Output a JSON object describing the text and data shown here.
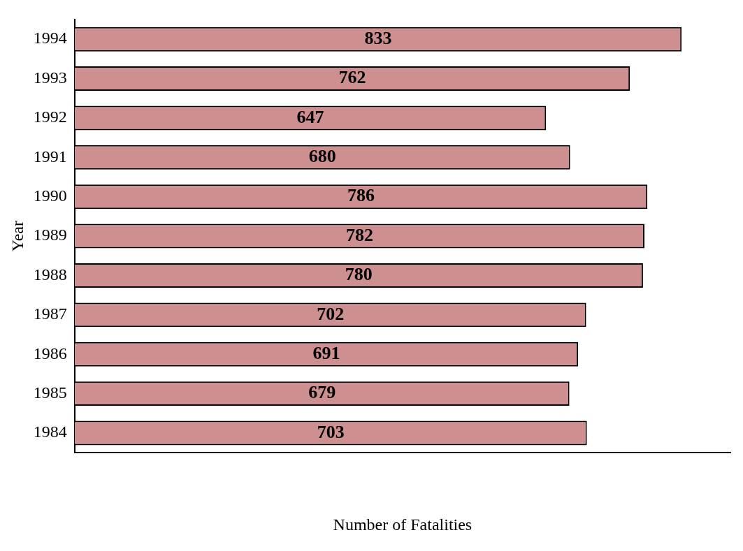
{
  "chart_data": {
    "type": "bar",
    "orientation": "horizontal",
    "xlabel": "Number of Fatalities",
    "ylabel": "Year",
    "categories": [
      "1994",
      "1993",
      "1992",
      "1991",
      "1990",
      "1989",
      "1988",
      "1987",
      "1986",
      "1985",
      "1984"
    ],
    "values": [
      833,
      762,
      647,
      680,
      786,
      782,
      780,
      702,
      691,
      679,
      703
    ],
    "color": "#cd8f8f",
    "data_labels": true,
    "tick_labels": "y",
    "grid": false,
    "legend": false
  }
}
